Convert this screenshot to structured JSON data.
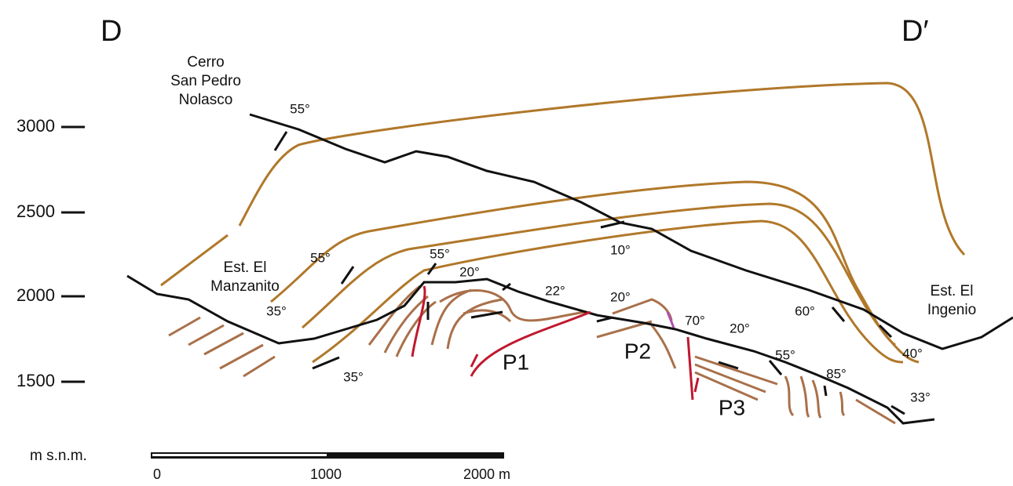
{
  "section": {
    "start": "D",
    "end": "D′"
  },
  "elevation_axis": {
    "ticks": [
      "3000",
      "2500",
      "2000",
      "1500"
    ],
    "unit": "m s.n.m."
  },
  "scale_bar": {
    "labels": [
      "0",
      "1000",
      "2000 m"
    ]
  },
  "places": [
    [
      "Cerro",
      "San Pedro",
      "Nolasco"
    ],
    [
      "Est. El",
      "Manzanito"
    ],
    [
      "Est. El",
      "Ingenio"
    ]
  ],
  "dips": [
    "55°",
    "55°",
    "55°",
    "20°",
    "22°",
    "20°",
    "10°",
    "35°",
    "35°",
    "70°",
    "20°",
    "60°",
    "40°",
    "55°",
    "85°",
    "33°"
  ],
  "thrusts": [
    "P1",
    "P2",
    "P3"
  ]
}
